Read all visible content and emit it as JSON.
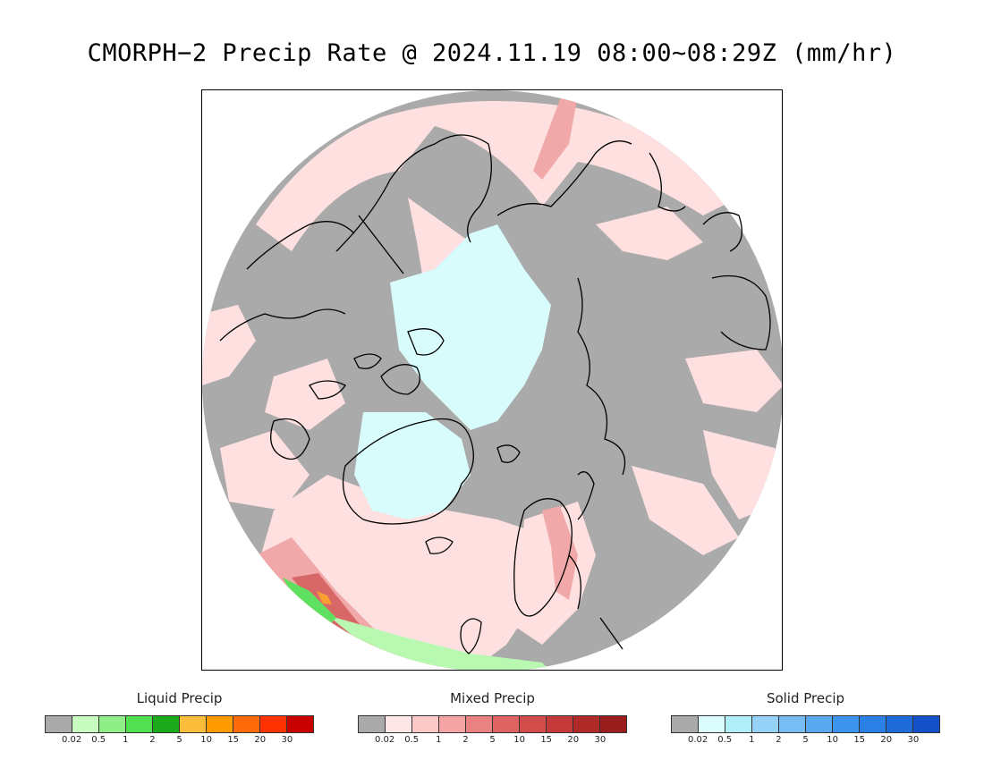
{
  "title": "CMORPH−2 Precip Rate @ 2024.11.19 08:00~08:29Z (mm/hr)",
  "map": {
    "colors": {
      "background": "#aaaaaa",
      "mixed_light": "#ffe0e0",
      "solid_light": "#d8fcfc",
      "liquid_light": "#b8f8b0",
      "liquid_med": "#60e060",
      "mixed_med": "#f0a8a8",
      "mixed_dark": "#d86868",
      "orange": "#f8a030",
      "coastline": "#000000"
    }
  },
  "legends": [
    {
      "title": "Liquid Precip",
      "colors": [
        "#aaaaaa",
        "#c8fcc0",
        "#90ee88",
        "#50e050",
        "#1aaa1a",
        "#fbbc3c",
        "#ff9a00",
        "#ff6a0a",
        "#ff3200",
        "#c80000"
      ],
      "ticks": [
        "0.02",
        "0.5",
        "1",
        "2",
        "5",
        "10",
        "15",
        "20",
        "30"
      ]
    },
    {
      "title": "Mixed Precip",
      "colors": [
        "#aaaaaa",
        "#ffe6e6",
        "#fcc8c8",
        "#f4a4a4",
        "#ea8282",
        "#de6464",
        "#d24c4c",
        "#c43a3a",
        "#b02a2a",
        "#9a1e1e"
      ],
      "ticks": [
        "0.02",
        "0.5",
        "1",
        "2",
        "5",
        "10",
        "15",
        "20",
        "30"
      ]
    },
    {
      "title": "Solid Precip",
      "colors": [
        "#aaaaaa",
        "#dafcfc",
        "#b0eef8",
        "#96d2f8",
        "#78bcf4",
        "#5aa8f0",
        "#3c94ec",
        "#2a80e4",
        "#1e6ad8",
        "#1450c8"
      ],
      "ticks": [
        "0.02",
        "0.5",
        "1",
        "2",
        "5",
        "10",
        "15",
        "20",
        "30"
      ]
    }
  ]
}
